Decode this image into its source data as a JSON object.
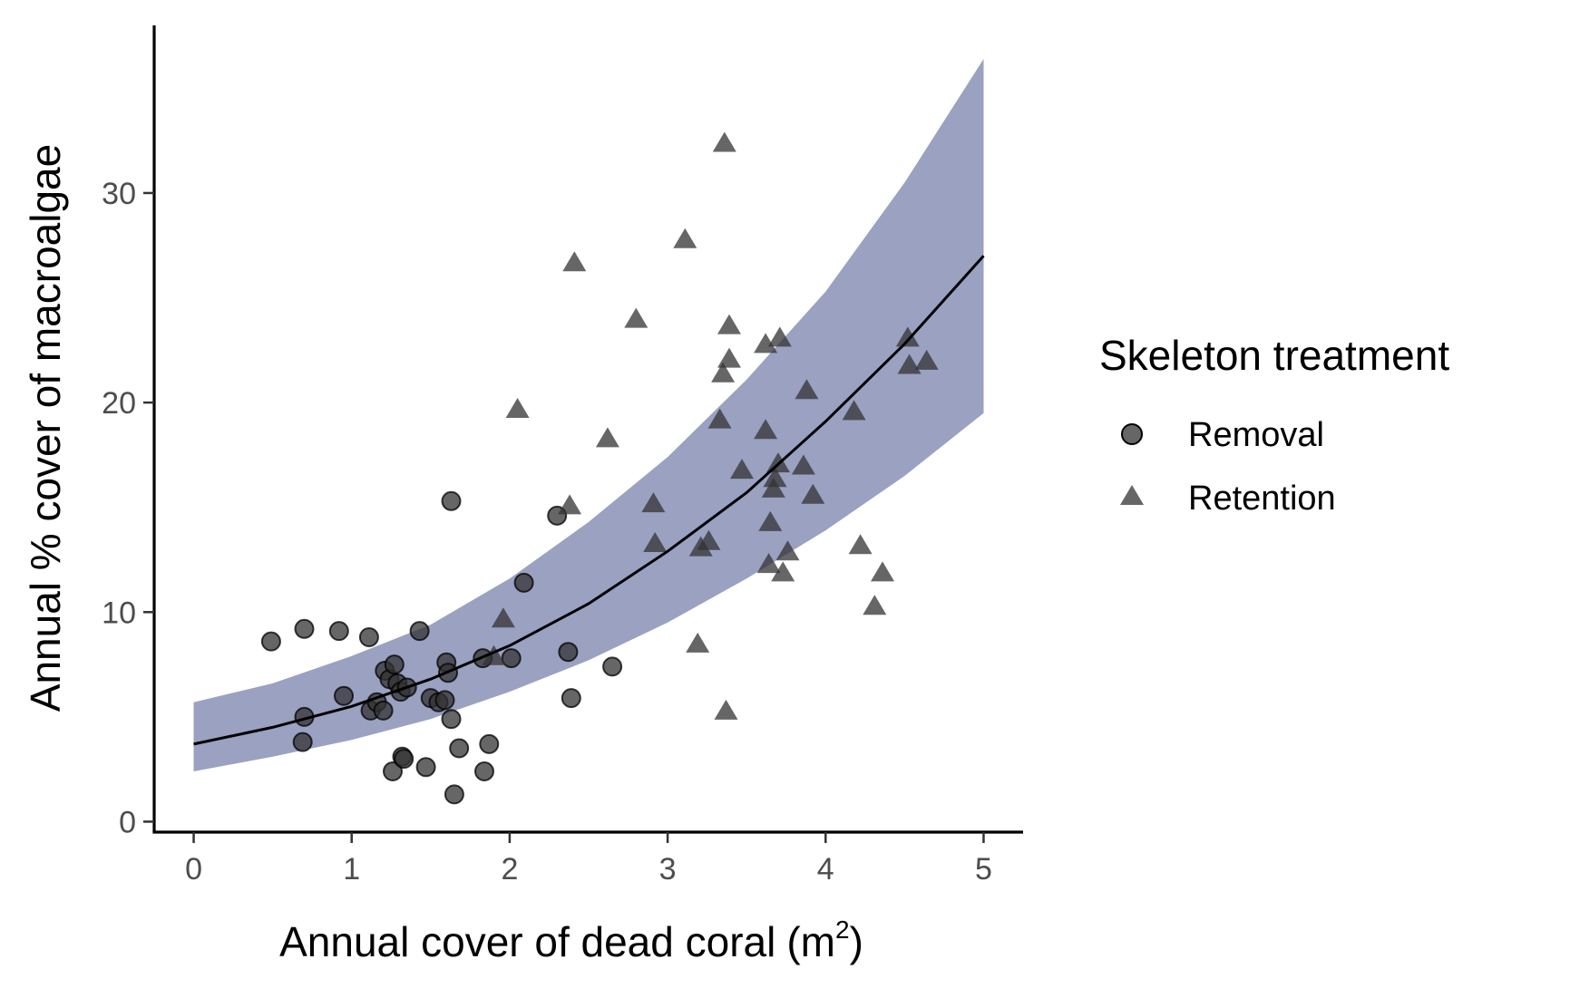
{
  "chart_data": {
    "type": "scatter",
    "xlabel": "Annual cover of dead coral",
    "xlabel_unit_base": "m",
    "xlabel_unit_sup": "2",
    "ylabel": "Annual % cover of macroalgae",
    "xlim": [
      -0.25,
      5.25
    ],
    "ylim": [
      -0.5,
      38
    ],
    "x_ticks": [
      0,
      1,
      2,
      3,
      4,
      5
    ],
    "y_ticks": [
      0,
      10,
      20,
      30
    ],
    "grid": false,
    "legend": {
      "title": "Skeleton treatment",
      "placement": "right",
      "entries": [
        "Removal",
        "Retention"
      ]
    },
    "colors": {
      "points": "#333333",
      "ribbon": "#9aa1c1",
      "line": "#000000",
      "axis": "#000000"
    },
    "series": [
      {
        "name": "Removal",
        "marker": "circle",
        "points": [
          [
            0.49,
            8.6
          ],
          [
            0.7,
            9.2
          ],
          [
            0.92,
            9.1
          ],
          [
            1.11,
            8.8
          ],
          [
            1.43,
            9.1
          ],
          [
            0.7,
            5.0
          ],
          [
            0.69,
            3.8
          ],
          [
            0.95,
            6.0
          ],
          [
            1.12,
            5.3
          ],
          [
            1.16,
            5.7
          ],
          [
            1.2,
            5.3
          ],
          [
            1.21,
            7.2
          ],
          [
            1.24,
            6.8
          ],
          [
            1.27,
            7.5
          ],
          [
            1.29,
            6.6
          ],
          [
            1.31,
            6.2
          ],
          [
            1.35,
            6.4
          ],
          [
            1.26,
            2.4
          ],
          [
            1.32,
            3.1
          ],
          [
            1.33,
            3.0
          ],
          [
            1.47,
            2.6
          ],
          [
            1.5,
            5.9
          ],
          [
            1.55,
            5.7
          ],
          [
            1.59,
            5.8
          ],
          [
            1.6,
            7.6
          ],
          [
            1.61,
            7.1
          ],
          [
            1.63,
            4.9
          ],
          [
            1.63,
            15.3
          ],
          [
            1.65,
            1.3
          ],
          [
            1.68,
            3.5
          ],
          [
            1.84,
            2.4
          ],
          [
            1.87,
            3.7
          ],
          [
            1.83,
            7.8
          ],
          [
            2.01,
            7.8
          ],
          [
            2.09,
            11.4
          ],
          [
            2.3,
            14.6
          ],
          [
            2.37,
            8.1
          ],
          [
            2.39,
            5.9
          ],
          [
            2.65,
            7.4
          ]
        ]
      },
      {
        "name": "Retention",
        "marker": "triangle",
        "points": [
          [
            1.9,
            7.9
          ],
          [
            1.96,
            9.7
          ],
          [
            2.05,
            19.7
          ],
          [
            2.38,
            15.1
          ],
          [
            2.41,
            26.7
          ],
          [
            2.62,
            18.3
          ],
          [
            2.8,
            24.0
          ],
          [
            2.91,
            15.2
          ],
          [
            2.92,
            13.3
          ],
          [
            3.11,
            27.8
          ],
          [
            3.19,
            8.5
          ],
          [
            3.21,
            13.1
          ],
          [
            3.26,
            13.4
          ],
          [
            3.33,
            19.2
          ],
          [
            3.35,
            21.4
          ],
          [
            3.36,
            32.4
          ],
          [
            3.37,
            5.3
          ],
          [
            3.39,
            23.7
          ],
          [
            3.39,
            22.1
          ],
          [
            3.47,
            16.8
          ],
          [
            3.62,
            22.8
          ],
          [
            3.62,
            18.7
          ],
          [
            3.64,
            12.3
          ],
          [
            3.65,
            14.3
          ],
          [
            3.67,
            15.9
          ],
          [
            3.68,
            16.4
          ],
          [
            3.7,
            17.1
          ],
          [
            3.71,
            23.1
          ],
          [
            3.73,
            11.9
          ],
          [
            3.76,
            12.9
          ],
          [
            3.86,
            17.0
          ],
          [
            3.88,
            20.6
          ],
          [
            3.92,
            15.6
          ],
          [
            4.18,
            19.6
          ],
          [
            4.22,
            13.2
          ],
          [
            4.31,
            10.3
          ],
          [
            4.36,
            11.9
          ],
          [
            4.52,
            23.1
          ],
          [
            4.53,
            21.8
          ],
          [
            4.64,
            22.0
          ]
        ]
      }
    ],
    "fit": {
      "x": [
        0,
        0.5,
        1,
        1.5,
        2,
        2.5,
        3,
        3.5,
        4,
        4.5,
        5
      ],
      "y": [
        3.7,
        4.5,
        5.5,
        6.8,
        8.4,
        10.4,
        12.9,
        15.7,
        19.1,
        22.8,
        27.0
      ],
      "lower": [
        2.4,
        3.1,
        3.9,
        4.9,
        6.2,
        7.7,
        9.5,
        11.6,
        13.9,
        16.5,
        19.5
      ],
      "upper": [
        5.7,
        6.6,
        7.9,
        9.4,
        11.6,
        14.3,
        17.4,
        21.1,
        25.3,
        30.5,
        36.4
      ]
    }
  }
}
